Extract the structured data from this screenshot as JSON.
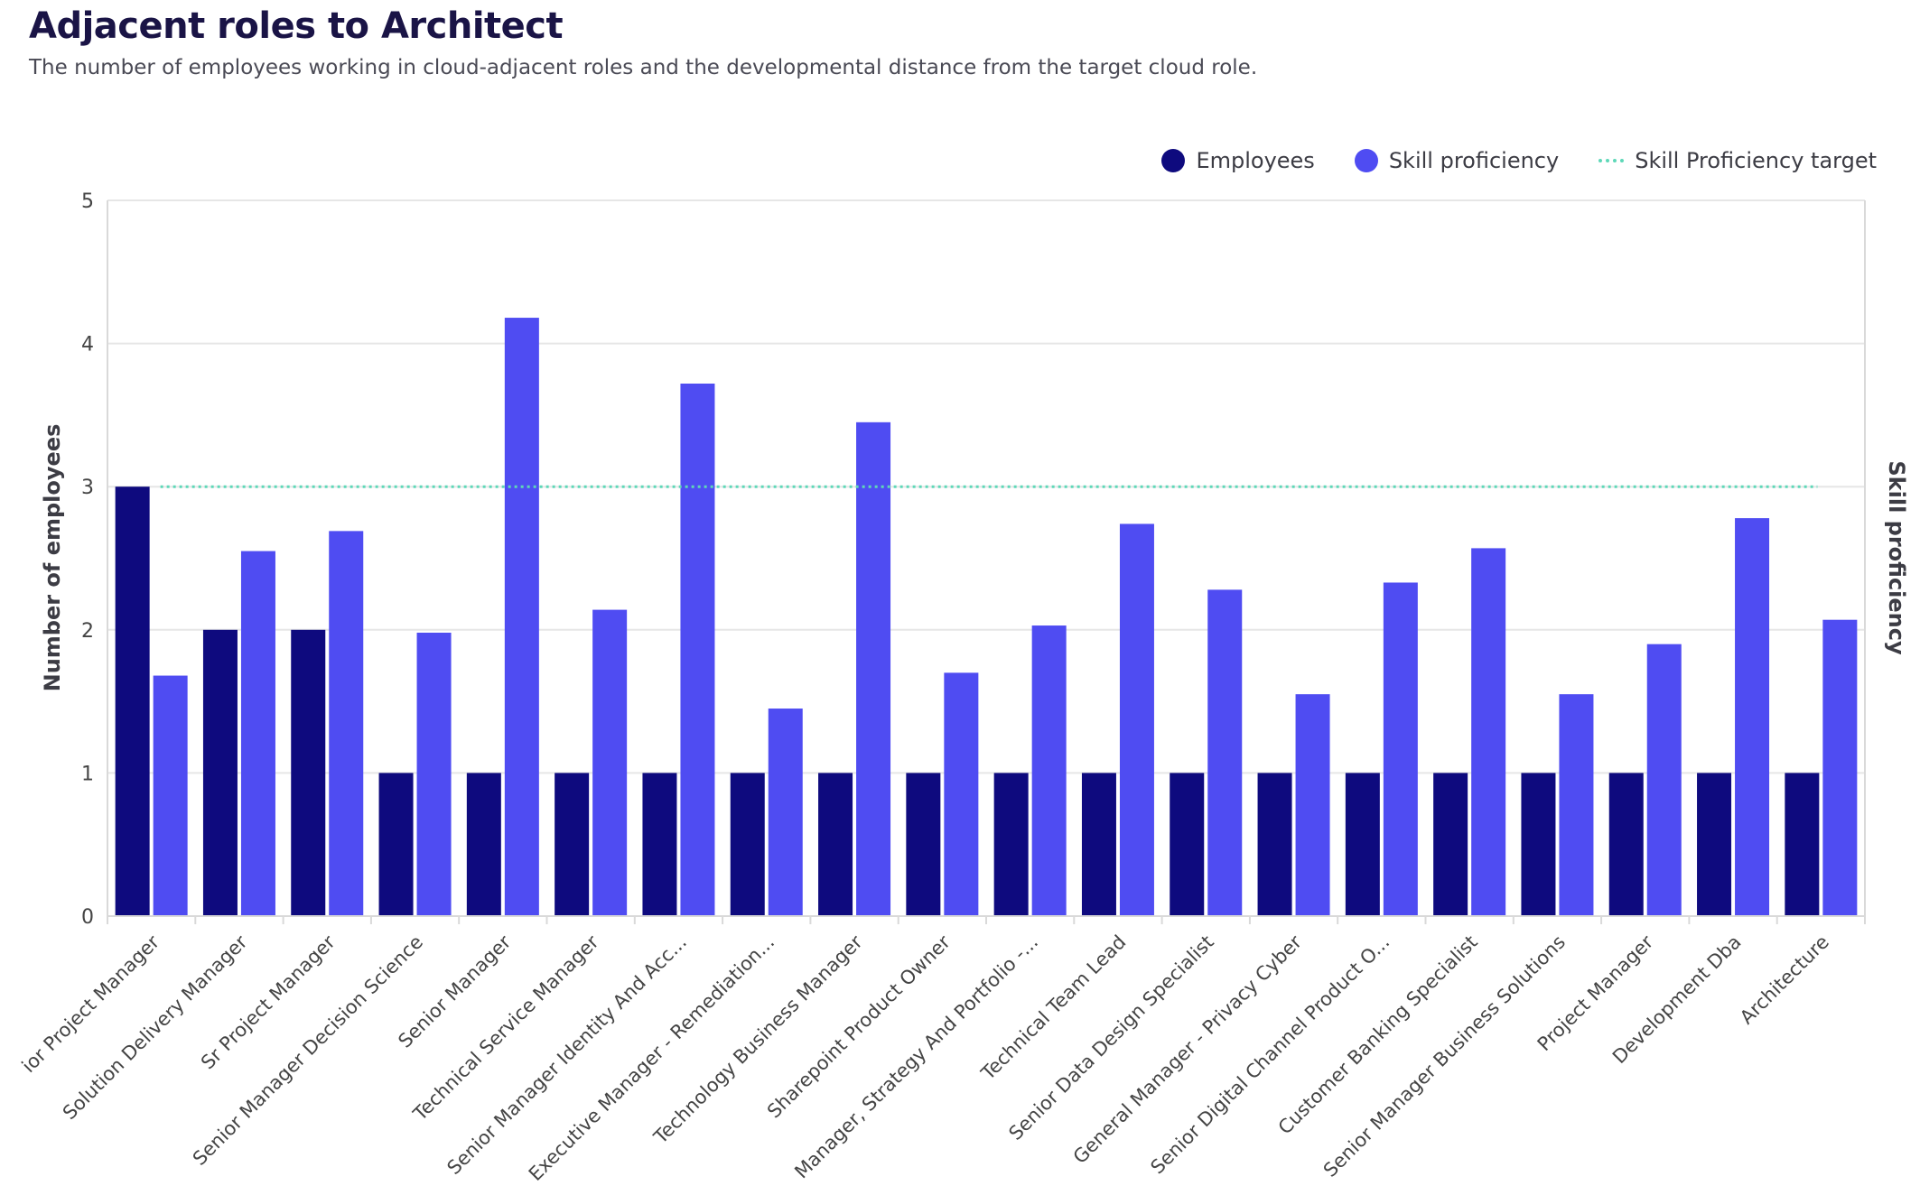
{
  "header": {
    "title": "Adjacent roles to Architect",
    "subtitle": "The number of employees working in cloud-adjacent roles and the developmental distance from the target cloud role."
  },
  "legend": {
    "items": [
      {
        "label": "Employees",
        "color": "#0e0a7e",
        "shape": "dot"
      },
      {
        "label": "Skill proficiency",
        "color": "#4f4cf2",
        "shape": "dot"
      },
      {
        "label": "Skill Proficiency target",
        "color": "#5ed8b8",
        "shape": "dotted-line"
      }
    ]
  },
  "chart_data": {
    "type": "bar",
    "title": "Adjacent roles to Architect",
    "ylabel": "Number of employees",
    "y2label": "Skill proficiency",
    "ylim": [
      0,
      5
    ],
    "yticks": [
      "0",
      "1",
      "2",
      "3",
      "4",
      "5"
    ],
    "grid": true,
    "legend_position": "top-right",
    "categories": [
      "ior Project Manager",
      "Solution Delivery Manager",
      "Sr Project Manager",
      "Senior Manager Decision Science",
      "Senior Manager",
      "Technical Service Manager",
      "Senior Manager Identity And Acc...",
      "Executive Manager - Remediation...",
      "Technology Business Manager",
      "Sharepoint Product Owner",
      "Manager, Strategy And Portfolio -...",
      "Technical Team Lead",
      "Senior Data Design Specialist",
      "General Manager - Privacy Cyber",
      "Senior Digital Channel Product O...",
      "Customer Banking Specialist",
      "Senior Manager Business Solutions",
      "Project Manager",
      "Development Dba",
      "Architecture"
    ],
    "series": [
      {
        "name": "Employees",
        "color": "#0e0a7e",
        "values": [
          3,
          2,
          2,
          1,
          1,
          1,
          1,
          1,
          1,
          1,
          1,
          1,
          1,
          1,
          1,
          1,
          1,
          1,
          1,
          1
        ]
      },
      {
        "name": "Skill proficiency",
        "color": "#4f4cf2",
        "values": [
          1.68,
          2.55,
          2.69,
          1.98,
          4.18,
          2.14,
          3.72,
          1.45,
          3.45,
          1.7,
          2.03,
          2.74,
          2.28,
          1.55,
          2.33,
          2.57,
          1.55,
          1.9,
          2.78,
          2.07
        ]
      }
    ],
    "target": {
      "name": "Skill Proficiency target",
      "value": 3,
      "color": "#5ed8b8",
      "style": "dotted"
    }
  }
}
